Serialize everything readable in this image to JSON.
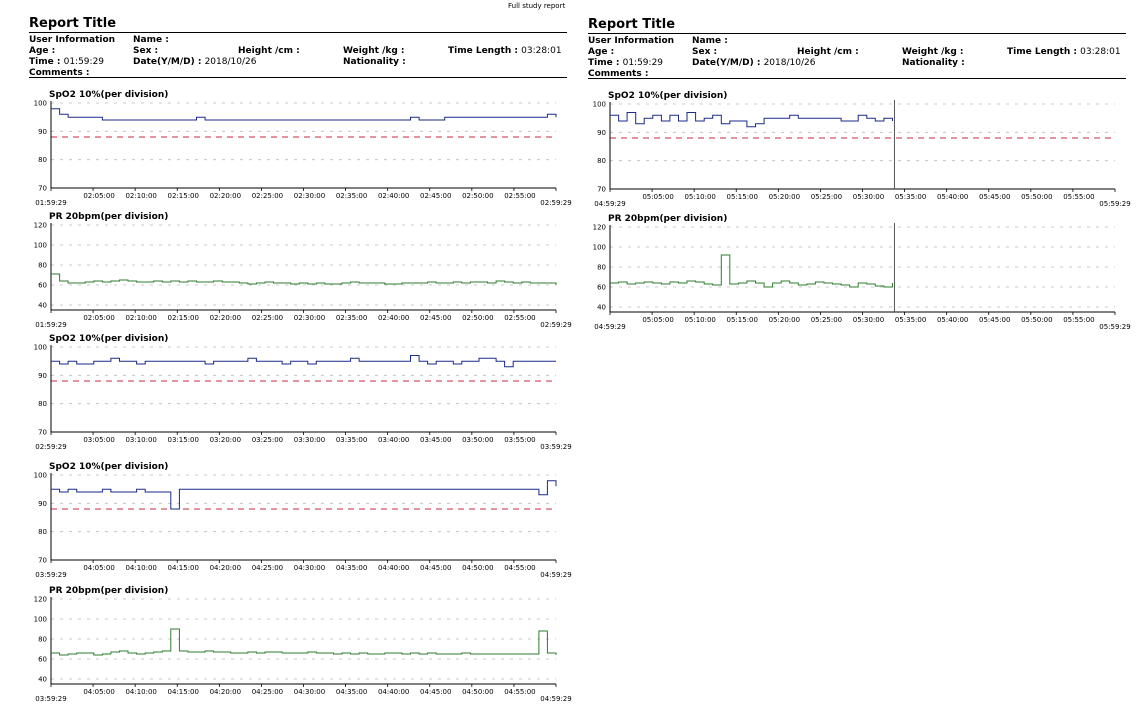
{
  "top_caption": "Full study report",
  "report_title": "Report Title",
  "labels": {
    "user_information": "User Information",
    "name": "Name :",
    "age": "Age :",
    "sex": "Sex :",
    "height": "Height /cm :",
    "weight": "Weight /kg :",
    "time_length": "Time Length :",
    "time": "Time :",
    "date": "Date(Y/M/D) :",
    "nationality": "Nationality :",
    "comments": "Comments :"
  },
  "values": {
    "time_length": "03:28:01",
    "time": "01:59:29",
    "date": "2018/10/26"
  },
  "colors": {
    "spo2": "#1a2a8a",
    "pr": "#2e7d2e",
    "threshold": "#c8283c",
    "grid": "#bbbbbb"
  },
  "chart_data": [
    {
      "id": "spo2-1",
      "type": "line",
      "title": "SpO2   10%(per division)",
      "y_ticks": [
        "100",
        "90",
        "80",
        "70"
      ],
      "ylim": [
        70,
        100
      ],
      "threshold": 88,
      "x_ticks": [
        "02:05:00",
        "02:10:00",
        "02:15:00",
        "02:20:00",
        "02:25:00",
        "02:30:00",
        "02:35:00",
        "02:40:00",
        "02:45:00",
        "02:50:00",
        "02:55:00"
      ],
      "start_label": "01:59:29",
      "end_label": "02:59:29",
      "series": [
        {
          "values": [
            98,
            96,
            95,
            95,
            95,
            95,
            94,
            94,
            94,
            94,
            94,
            94,
            94,
            94,
            94,
            94,
            94,
            95,
            94,
            94,
            94,
            94,
            94,
            94,
            94,
            94,
            94,
            94,
            94,
            94,
            94,
            94,
            94,
            94,
            94,
            94,
            94,
            94,
            94,
            94,
            94,
            94,
            95,
            94,
            94,
            94,
            95,
            95,
            95,
            95,
            95,
            95,
            95,
            95,
            95,
            95,
            95,
            95,
            96,
            95
          ]
        }
      ]
    },
    {
      "id": "pr-1",
      "type": "line",
      "title": "PR   20bpm(per division)",
      "y_ticks": [
        "120",
        "100",
        "80",
        "60",
        "40"
      ],
      "ylim": [
        35,
        120
      ],
      "x_ticks": [
        "02:05:00",
        "02:10:00",
        "02:15:00",
        "02:20:00",
        "02:25:00",
        "02:30:00",
        "02:35:00",
        "02:40:00",
        "02:45:00",
        "02:50:00",
        "02:55:00"
      ],
      "start_label": "01:59:29",
      "end_label": "02:59:29",
      "series": [
        {
          "values": [
            71,
            64,
            62,
            62,
            63,
            64,
            63,
            64,
            65,
            64,
            63,
            63,
            64,
            63,
            64,
            63,
            64,
            63,
            63,
            64,
            63,
            63,
            62,
            61,
            62,
            63,
            62,
            62,
            61,
            62,
            61,
            62,
            61,
            61,
            62,
            63,
            62,
            62,
            62,
            61,
            61,
            62,
            62,
            62,
            63,
            62,
            62,
            63,
            62,
            63,
            63,
            62,
            64,
            63,
            62,
            63,
            62,
            62,
            62,
            60
          ]
        }
      ]
    },
    {
      "id": "spo2-2",
      "type": "line",
      "title": "SpO2   10%(per division)",
      "y_ticks": [
        "100",
        "90",
        "80",
        "70"
      ],
      "ylim": [
        70,
        100
      ],
      "threshold": 88,
      "x_ticks": [
        "03:05:00",
        "03:10:00",
        "03:15:00",
        "03:20:00",
        "03:25:00",
        "03:30:00",
        "03:35:00",
        "03:40:00",
        "03:45:00",
        "03:50:00",
        "03:55:00"
      ],
      "start_label": "02:59:29",
      "end_label": "03:59:29",
      "series": [
        {
          "values": [
            95,
            94,
            95,
            94,
            94,
            95,
            95,
            96,
            95,
            95,
            94,
            95,
            95,
            95,
            95,
            95,
            95,
            95,
            94,
            95,
            95,
            95,
            95,
            96,
            95,
            95,
            95,
            94,
            95,
            95,
            94,
            95,
            95,
            95,
            95,
            96,
            95,
            95,
            95,
            95,
            95,
            95,
            97,
            95,
            94,
            95,
            95,
            94,
            95,
            95,
            96,
            96,
            95,
            93,
            95,
            95,
            95,
            95,
            95,
            95
          ]
        }
      ]
    },
    {
      "id": "spo2-3",
      "type": "line",
      "title": "SpO2   10%(per division)",
      "y_ticks": [
        "100",
        "90",
        "80",
        "70"
      ],
      "ylim": [
        70,
        100
      ],
      "threshold": 88,
      "x_ticks": [
        "04:05:00",
        "04:10:00",
        "04:15:00",
        "04:20:00",
        "04:25:00",
        "04:30:00",
        "04:35:00",
        "04:40:00",
        "04:45:00",
        "04:50:00",
        "04:55:00"
      ],
      "start_label": "03:59:29",
      "end_label": "04:59:29",
      "series": [
        {
          "values": [
            95,
            94,
            95,
            94,
            94,
            94,
            95,
            94,
            94,
            94,
            95,
            94,
            94,
            94,
            88,
            95,
            95,
            95,
            95,
            95,
            95,
            95,
            95,
            95,
            95,
            95,
            95,
            95,
            95,
            95,
            95,
            95,
            95,
            95,
            95,
            95,
            95,
            95,
            95,
            95,
            95,
            95,
            95,
            95,
            95,
            95,
            95,
            95,
            95,
            95,
            95,
            95,
            95,
            95,
            95,
            95,
            95,
            93,
            98,
            96
          ]
        }
      ]
    },
    {
      "id": "pr-2",
      "type": "line",
      "title": "PR   20bpm(per division)",
      "y_ticks": [
        "120",
        "100",
        "80",
        "60",
        "40"
      ],
      "ylim": [
        35,
        120
      ],
      "x_ticks": [
        "04:05:00",
        "04:10:00",
        "04:15:00",
        "04:20:00",
        "04:25:00",
        "04:30:00",
        "04:35:00",
        "04:40:00",
        "04:45:00",
        "04:50:00",
        "04:55:00"
      ],
      "start_label": "03:59:29",
      "end_label": "04:59:29",
      "series": [
        {
          "values": [
            66,
            64,
            65,
            66,
            66,
            64,
            65,
            67,
            68,
            66,
            65,
            66,
            67,
            68,
            90,
            68,
            67,
            67,
            68,
            67,
            67,
            66,
            66,
            67,
            66,
            67,
            67,
            66,
            66,
            66,
            67,
            66,
            66,
            65,
            66,
            65,
            66,
            65,
            65,
            66,
            66,
            65,
            66,
            65,
            66,
            65,
            65,
            65,
            66,
            65,
            65,
            65,
            65,
            65,
            65,
            65,
            65,
            88,
            66,
            64
          ]
        }
      ]
    },
    {
      "id": "spo2-4",
      "type": "line",
      "title": "SpO2   10%(per division)",
      "y_ticks": [
        "100",
        "90",
        "80",
        "70"
      ],
      "ylim": [
        70,
        100
      ],
      "threshold": 88,
      "x_ticks": [
        "05:05:00",
        "05:10:00",
        "05:15:00",
        "05:20:00",
        "05:25:00",
        "05:30:00",
        "05:35:00",
        "05:40:00",
        "05:45:00",
        "05:50:00",
        "05:55:00"
      ],
      "start_label": "04:59:29",
      "end_label": "05:59:29",
      "series": [
        {
          "values": [
            96,
            94,
            97,
            93,
            95,
            96,
            94,
            96,
            94,
            97,
            94,
            95,
            96,
            93,
            94,
            94,
            92,
            93,
            95,
            95,
            95,
            96,
            95,
            95,
            95,
            95,
            95,
            94,
            94,
            96,
            95,
            94,
            95,
            94,
            null,
            null,
            null,
            null,
            null,
            null,
            null,
            null,
            null,
            null,
            null,
            null,
            null,
            null,
            null,
            null,
            null,
            null,
            null,
            null,
            null,
            null,
            null,
            null,
            null,
            null
          ]
        }
      ]
    },
    {
      "id": "pr-3",
      "type": "line",
      "title": "PR   20bpm(per division)",
      "y_ticks": [
        "120",
        "100",
        "80",
        "60",
        "40"
      ],
      "ylim": [
        35,
        120
      ],
      "x_ticks": [
        "05:05:00",
        "05:10:00",
        "05:15:00",
        "05:20:00",
        "05:25:00",
        "05:30:00",
        "05:35:00",
        "05:40:00",
        "05:45:00",
        "05:50:00",
        "05:55:00"
      ],
      "start_label": "04:59:29",
      "end_label": "05:59:29",
      "series": [
        {
          "values": [
            64,
            65,
            63,
            64,
            65,
            64,
            63,
            65,
            64,
            66,
            65,
            63,
            62,
            92,
            63,
            64,
            66,
            64,
            60,
            64,
            66,
            64,
            62,
            63,
            65,
            64,
            63,
            62,
            60,
            64,
            63,
            61,
            60,
            64,
            null,
            null,
            null,
            null,
            null,
            null,
            null,
            null,
            null,
            null,
            null,
            null,
            null,
            null,
            null,
            null,
            null,
            null,
            null,
            null,
            null,
            null,
            null,
            null,
            null,
            null
          ]
        }
      ]
    }
  ]
}
